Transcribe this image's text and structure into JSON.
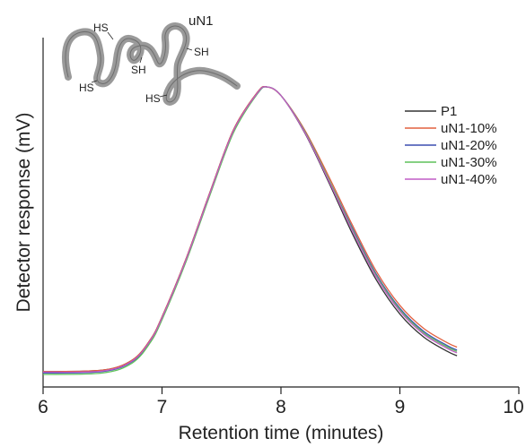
{
  "chart_data": {
    "type": "line",
    "title": "",
    "xlabel": "Retention time (minutes)",
    "ylabel": "Detector response (mV)",
    "xlim": [
      6,
      10
    ],
    "x_ticks": [
      "6",
      "7",
      "8",
      "9",
      "10"
    ],
    "y_ticks": [],
    "grid": false,
    "legend_position": "right",
    "series": [
      {
        "name": "P1",
        "color": "#333333",
        "x": [
          6.0,
          6.5,
          6.75,
          6.9,
          7.0,
          7.2,
          7.4,
          7.6,
          7.8,
          7.88,
          8.0,
          8.2,
          8.4,
          8.6,
          8.8,
          9.0,
          9.2,
          9.4,
          9.48
        ],
        "y": [
          0.01,
          0.015,
          0.05,
          0.12,
          0.2,
          0.4,
          0.63,
          0.85,
          0.98,
          1.0,
          0.97,
          0.84,
          0.67,
          0.49,
          0.33,
          0.21,
          0.13,
          0.08,
          0.065
        ]
      },
      {
        "name": "uN1-10%",
        "color": "#e2603f",
        "x": [
          6.0,
          6.5,
          6.75,
          6.9,
          7.0,
          7.2,
          7.4,
          7.6,
          7.8,
          7.88,
          8.0,
          8.2,
          8.4,
          8.6,
          8.8,
          9.0,
          9.2,
          9.4,
          9.48
        ],
        "y": [
          0.01,
          0.015,
          0.05,
          0.12,
          0.2,
          0.4,
          0.63,
          0.85,
          0.98,
          1.0,
          0.97,
          0.85,
          0.69,
          0.52,
          0.36,
          0.24,
          0.16,
          0.11,
          0.095
        ]
      },
      {
        "name": "uN1-20%",
        "color": "#3b4fb0",
        "x": [
          6.0,
          6.5,
          6.75,
          6.9,
          7.0,
          7.2,
          7.4,
          7.6,
          7.8,
          7.88,
          8.0,
          8.2,
          8.4,
          8.6,
          8.8,
          9.0,
          9.2,
          9.4,
          9.48
        ],
        "y": [
          0.005,
          0.01,
          0.045,
          0.115,
          0.195,
          0.395,
          0.625,
          0.845,
          0.975,
          1.0,
          0.97,
          0.845,
          0.68,
          0.51,
          0.35,
          0.23,
          0.15,
          0.1,
          0.085
        ]
      },
      {
        "name": "uN1-30%",
        "color": "#5fc15a",
        "x": [
          6.0,
          6.5,
          6.75,
          6.9,
          7.0,
          7.2,
          7.4,
          7.6,
          7.8,
          7.88,
          8.0,
          8.2,
          8.4,
          8.6,
          8.8,
          9.0,
          9.2,
          9.4,
          9.48
        ],
        "y": [
          0.0,
          0.005,
          0.04,
          0.11,
          0.19,
          0.39,
          0.62,
          0.84,
          0.975,
          1.0,
          0.97,
          0.845,
          0.68,
          0.505,
          0.345,
          0.225,
          0.145,
          0.095,
          0.08
        ]
      },
      {
        "name": "uN1-40%",
        "color": "#c05bc6",
        "x": [
          6.0,
          6.5,
          6.75,
          6.9,
          7.0,
          7.2,
          7.4,
          7.6,
          7.8,
          7.88,
          8.0,
          8.2,
          8.4,
          8.6,
          8.8,
          9.0,
          9.2,
          9.4,
          9.48
        ],
        "y": [
          0.008,
          0.012,
          0.047,
          0.117,
          0.197,
          0.397,
          0.627,
          0.847,
          0.978,
          1.0,
          0.97,
          0.842,
          0.675,
          0.5,
          0.34,
          0.22,
          0.14,
          0.09,
          0.075
        ]
      }
    ]
  },
  "inset": {
    "title": "uN1",
    "labels": [
      "HS",
      "SH",
      "HS",
      "SH",
      "HS"
    ]
  }
}
